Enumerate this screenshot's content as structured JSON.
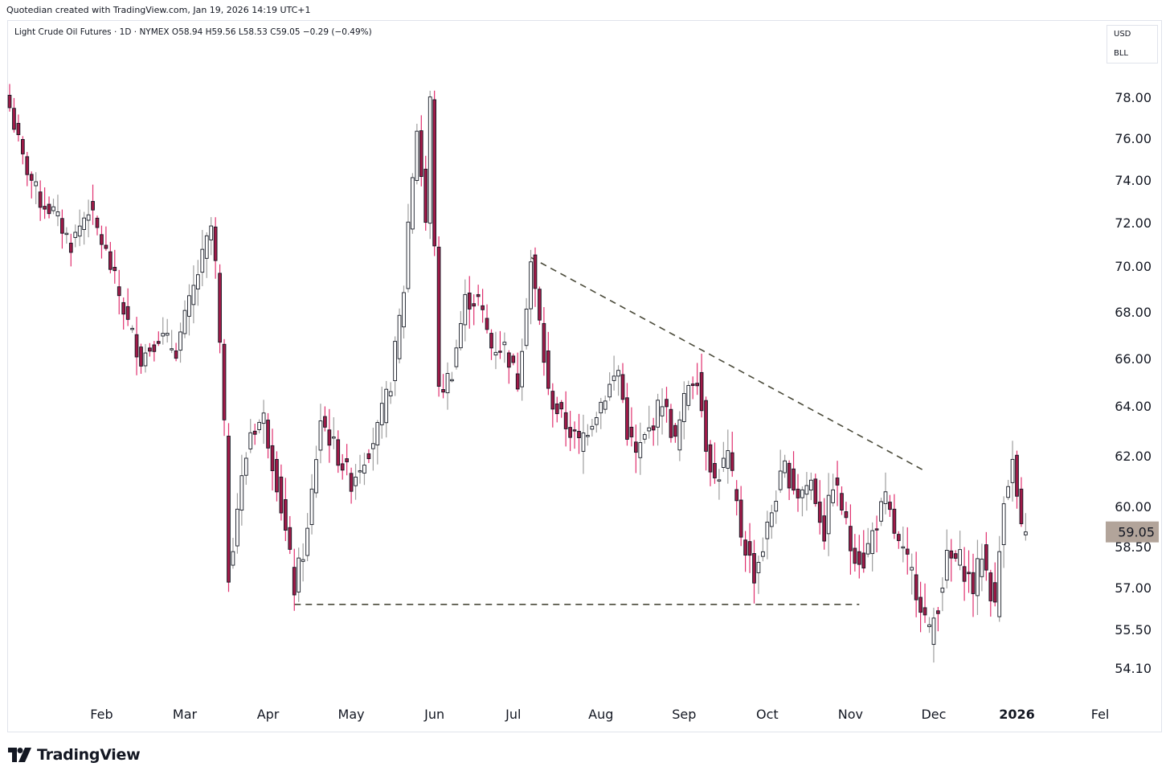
{
  "header_text": "Quotedian created with TradingView.com, Jan 19, 2026 14:19 UTC+1",
  "symbol_line": "Light Crude Oil Futures · 1D · NYMEX  O58.94  H59.56  L58.53  C59.05  −0.29 (−0.49%)",
  "unit_box": {
    "currency": "USD",
    "unit": "BLL"
  },
  "footer": {
    "brand": "TradingView",
    "icon": "tradingview-logo-icon"
  },
  "colors": {
    "up": "#ffffff",
    "down": "#a01a48",
    "body_outline": "#131722",
    "wick_down": "#e02f6e",
    "wick_up": "#9e9e9e",
    "trendline": "#4a4a3a",
    "price_label_bg": "#b2a49a"
  },
  "chart_data": {
    "type": "candlestick",
    "title": "Light Crude Oil Futures · 1D · NYMEX",
    "current_price": 59.05,
    "y_ticks": [
      {
        "label": "78.00",
        "value": 78.0
      },
      {
        "label": "76.00",
        "value": 76.0
      },
      {
        "label": "74.00",
        "value": 74.0
      },
      {
        "label": "72.00",
        "value": 72.0
      },
      {
        "label": "70.00",
        "value": 70.0
      },
      {
        "label": "68.00",
        "value": 68.0
      },
      {
        "label": "66.00",
        "value": 66.0
      },
      {
        "label": "64.00",
        "value": 64.0
      },
      {
        "label": "62.00",
        "value": 62.0
      },
      {
        "label": "60.00",
        "value": 60.0
      },
      {
        "label": "58.50",
        "value": 58.5
      },
      {
        "label": "57.00",
        "value": 57.0
      },
      {
        "label": "55.50",
        "value": 55.5
      },
      {
        "label": "54.10",
        "value": 54.1
      }
    ],
    "x_ticks": [
      "Feb",
      "Mar",
      "Apr",
      "May",
      "Jun",
      "Jul",
      "Aug",
      "Sep",
      "Oct",
      "Nov",
      "Dec",
      "2026",
      "Fel"
    ],
    "x_tick_days": [
      21,
      40,
      59,
      78,
      97,
      115,
      135,
      154,
      173,
      192,
      211,
      230,
      249
    ],
    "trendlines": [
      {
        "name": "resistance",
        "from": {
          "day": 119,
          "price": 70.4
        },
        "to": {
          "day": 209,
          "price": 61.4
        }
      },
      {
        "name": "support",
        "from": {
          "day": 65,
          "price": 56.4
        },
        "to": {
          "day": 194,
          "price": 56.4
        }
      }
    ],
    "pivots": [
      [
        0,
        77.5
      ],
      [
        3,
        75.0
      ],
      [
        7,
        73.0
      ],
      [
        10,
        72.5
      ],
      [
        14,
        71.0
      ],
      [
        18,
        72.7
      ],
      [
        22,
        70.6
      ],
      [
        27,
        67.5
      ],
      [
        30,
        66.0
      ],
      [
        34,
        67.0
      ],
      [
        38,
        66.4
      ],
      [
        42,
        69.0
      ],
      [
        46,
        71.8
      ],
      [
        47,
        70.0
      ],
      [
        49,
        63.0
      ],
      [
        50,
        57.5
      ],
      [
        52,
        60.0
      ],
      [
        55,
        63.0
      ],
      [
        58,
        63.5
      ],
      [
        61,
        61.0
      ],
      [
        65,
        57.0
      ],
      [
        68,
        59.0
      ],
      [
        71,
        63.5
      ],
      [
        75,
        62.0
      ],
      [
        78,
        61.0
      ],
      [
        81,
        62.0
      ],
      [
        84,
        63.0
      ],
      [
        87,
        65.0
      ],
      [
        90,
        69.0
      ],
      [
        91,
        72.0
      ],
      [
        93,
        76.5
      ],
      [
        95,
        72.0
      ],
      [
        96,
        77.8
      ],
      [
        98,
        64.5
      ],
      [
        101,
        65.5
      ],
      [
        104,
        68.5
      ],
      [
        107,
        68.5
      ],
      [
        110,
        66.5
      ],
      [
        113,
        66.5
      ],
      [
        116,
        65.0
      ],
      [
        119,
        70.2
      ],
      [
        121,
        67.5
      ],
      [
        123,
        64.5
      ],
      [
        126,
        63.5
      ],
      [
        130,
        62.5
      ],
      [
        133,
        63.5
      ],
      [
        136,
        64.5
      ],
      [
        139,
        65.5
      ],
      [
        141,
        63.0
      ],
      [
        143,
        62.0
      ],
      [
        146,
        63.0
      ],
      [
        149,
        64.3
      ],
      [
        152,
        62.5
      ],
      [
        155,
        65.0
      ],
      [
        157,
        65.3
      ],
      [
        159,
        62.5
      ],
      [
        161,
        61.0
      ],
      [
        164,
        62.0
      ],
      [
        167,
        59.0
      ],
      [
        170,
        57.5
      ],
      [
        172,
        58.5
      ],
      [
        175,
        60.5
      ],
      [
        177,
        61.5
      ],
      [
        180,
        60.5
      ],
      [
        183,
        61.0
      ],
      [
        186,
        59.0
      ],
      [
        188,
        61.0
      ],
      [
        190,
        60.0
      ],
      [
        192,
        58.5
      ],
      [
        195,
        58.0
      ],
      [
        198,
        59.5
      ],
      [
        200,
        60.2
      ],
      [
        203,
        58.5
      ],
      [
        206,
        57.5
      ],
      [
        208,
        56.5
      ],
      [
        210,
        55.3
      ],
      [
        212,
        56.5
      ],
      [
        214,
        58.0
      ],
      [
        217,
        58.0
      ],
      [
        220,
        57.0
      ],
      [
        222,
        58.3
      ],
      [
        225,
        56.2
      ],
      [
        227,
        60.5
      ],
      [
        229,
        61.7
      ],
      [
        231,
        59.0
      ],
      [
        232,
        59.05
      ]
    ]
  }
}
